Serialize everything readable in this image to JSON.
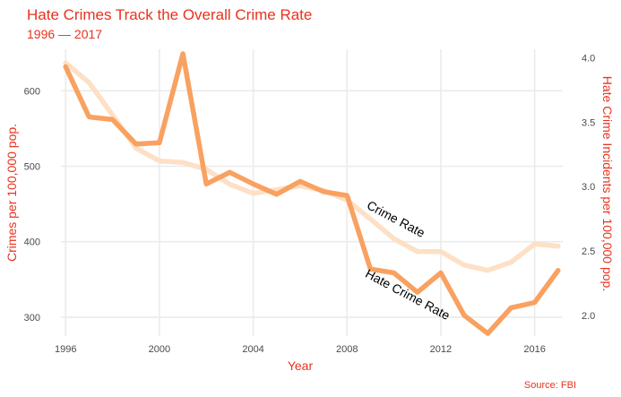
{
  "chart_data": {
    "type": "line",
    "title": "Hate Crimes Track the Overall Crime Rate",
    "subtitle": "1996 — 2017",
    "xlabel": "Year",
    "ylabel_left": "Crimes per 100,000 pop.",
    "ylabel_right": "Hate Crime Incidents per 100,000 pop.",
    "caption": "Source: FBI",
    "x": [
      1996,
      1997,
      1998,
      1999,
      2000,
      2001,
      2002,
      2003,
      2004,
      2005,
      2006,
      2007,
      2008,
      2009,
      2010,
      2011,
      2012,
      2013,
      2014,
      2015,
      2016,
      2017
    ],
    "x_ticks": [
      "1996",
      "2000",
      "2004",
      "2008",
      "2012",
      "2016"
    ],
    "xlim": [
      1995.8,
      2017.2
    ],
    "ylim_left": [
      275,
      655
    ],
    "y_ticks_left": [
      "300",
      "400",
      "500",
      "600"
    ],
    "ylim_right": [
      1.84,
      4.065
    ],
    "y_ticks_right": [
      "2.0",
      "2.5",
      "3.0",
      "3.5",
      "4.0"
    ],
    "grid": true,
    "legend": "none",
    "series": [
      {
        "name": "Crime Rate",
        "axis": "left",
        "color": "#fde0c5",
        "values": [
          637,
          611,
          568,
          524,
          507,
          505,
          496,
          476,
          464,
          469,
          474,
          468,
          455,
          430,
          404,
          387,
          387,
          369,
          362,
          373,
          397,
          394
        ]
      },
      {
        "name": "Hate Crime Rate",
        "axis": "right",
        "color": "#f9a160",
        "values": [
          3.93,
          3.54,
          3.52,
          3.33,
          3.34,
          4.03,
          3.02,
          3.11,
          3.02,
          2.94,
          3.04,
          2.96,
          2.93,
          2.36,
          2.33,
          2.18,
          2.33,
          2.0,
          1.86,
          2.06,
          2.1,
          2.35
        ]
      }
    ],
    "annotations": [
      {
        "text": "Crime Rate",
        "x": 2010,
        "y_left": 425,
        "angle": 28
      },
      {
        "text": "Hate Crime Rate",
        "x": 2010.5,
        "y_left": 325,
        "angle": 28
      }
    ]
  }
}
